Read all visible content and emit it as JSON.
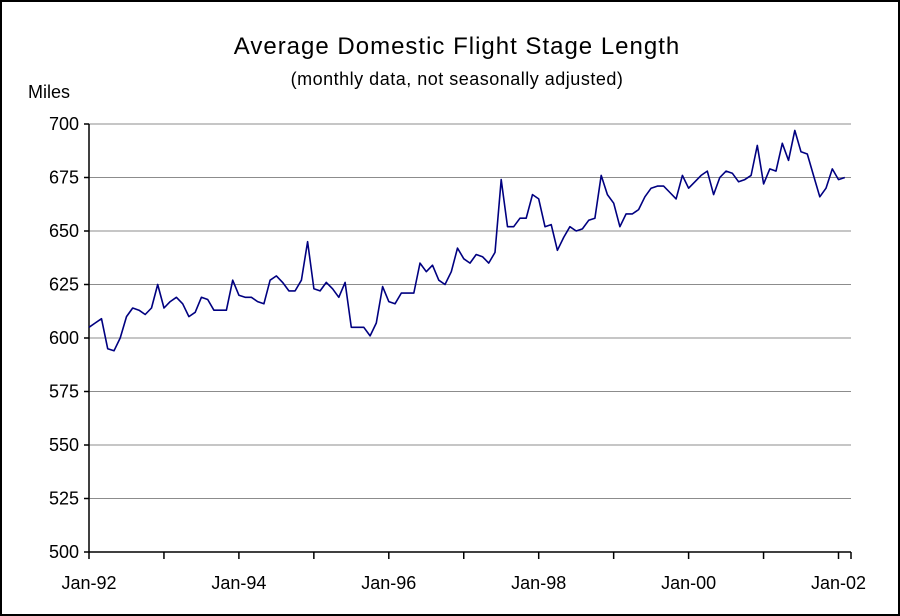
{
  "chart_data": {
    "type": "line",
    "title": "Average Domestic Flight Stage Length",
    "subtitle": "(monthly data, not seasonally adjusted)",
    "ylabel": "Miles",
    "xlabel": "",
    "ylim": [
      500,
      700
    ],
    "y_ticks": [
      500,
      525,
      550,
      575,
      600,
      625,
      650,
      675,
      700
    ],
    "x_tick_labels": [
      "Jan-92",
      "Jan-94",
      "Jan-96",
      "Jan-98",
      "Jan-00",
      "Jan-02"
    ],
    "x_tick_months": [
      "Jan-92",
      "Jan-93",
      "Jan-94",
      "Jan-95",
      "Jan-96",
      "Jan-97",
      "Jan-98",
      "Jan-99",
      "Jan-00",
      "Jan-01",
      "Jan-02"
    ],
    "x_range": [
      "Jan-92",
      "Mar-02"
    ],
    "grid": true,
    "line_color": "#000080",
    "series": [
      {
        "start": "Jan-92",
        "values": [
          605,
          607,
          609,
          595,
          594,
          600,
          610,
          614,
          613,
          611,
          614,
          625,
          614,
          617,
          619,
          616,
          610,
          612,
          619,
          618,
          613,
          613,
          613,
          627,
          620,
          619,
          619,
          617,
          616,
          627,
          629,
          626,
          622,
          622,
          627,
          645,
          623,
          622,
          626,
          623,
          619,
          626,
          605,
          605,
          605,
          601,
          607,
          624,
          617,
          616,
          621,
          621,
          621,
          635,
          631,
          634,
          627,
          625,
          631,
          642,
          637,
          635,
          639,
          638,
          635,
          640,
          674,
          652,
          652,
          656,
          656,
          667,
          665,
          652,
          653,
          641,
          647,
          652,
          650,
          651,
          655,
          656,
          676,
          667,
          663,
          652,
          658,
          658,
          660,
          666,
          670,
          671,
          671,
          668,
          665,
          676,
          670,
          673,
          676,
          678,
          667,
          675,
          678,
          677,
          673,
          674,
          676,
          690,
          672,
          679,
          678,
          691,
          683,
          697,
          687,
          686,
          676,
          666,
          670,
          679,
          674,
          675
        ]
      }
    ]
  }
}
